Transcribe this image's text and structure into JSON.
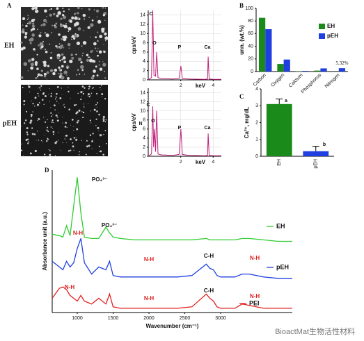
{
  "panel_labels": [
    "A",
    "B",
    "C",
    "D"
  ],
  "row_labels": [
    "EH",
    "pEH"
  ],
  "watermark": "BioactMat生物活性材料",
  "chart_data": [
    {
      "type": "line",
      "ylabel": "cps/eV",
      "xlabel": "keV",
      "x": [
        0,
        0.2,
        0.28,
        0.35,
        0.45,
        0.52,
        0.6,
        0.8,
        1.5,
        1.9,
        2.01,
        2.1,
        2.5,
        3.5,
        3.65,
        3.69,
        3.75,
        4.0,
        4.5
      ],
      "series": [
        {
          "color": "#c0207a",
          "values": [
            0,
            0.5,
            15,
            1,
            0.8,
            6,
            0.5,
            0.3,
            0.2,
            0.3,
            3,
            0.3,
            0.2,
            0.1,
            0.2,
            5,
            0.2,
            0.1,
            0.1
          ]
        }
      ],
      "annotations": [
        "C",
        "O",
        "P",
        "Ca"
      ],
      "xlim": [
        0,
        4.5
      ],
      "xticks": [
        2,
        4
      ],
      "ylim": [
        0,
        15
      ],
      "yticks": [
        0,
        2,
        4,
        6,
        8,
        10,
        12,
        14
      ],
      "grid": true
    },
    {
      "type": "line",
      "ylabel": "cps/eV",
      "xlabel": "keV",
      "x": [
        0,
        0.2,
        0.28,
        0.33,
        0.39,
        0.45,
        0.52,
        0.6,
        0.8,
        1.5,
        1.9,
        2.01,
        2.1,
        2.5,
        3.5,
        3.65,
        3.69,
        3.75,
        4.0,
        4.5
      ],
      "series": [
        {
          "color": "#c0207a",
          "values": [
            0,
            0.5,
            11,
            2,
            6,
            1,
            10,
            0.5,
            0.3,
            0.2,
            0.4,
            6,
            0.4,
            0.2,
            0.1,
            0.2,
            5,
            0.2,
            0.1,
            0.1
          ]
        }
      ],
      "annotations": [
        "C",
        "N",
        "O",
        "P",
        "Ca"
      ],
      "xlim": [
        0,
        4.5
      ],
      "xticks": [
        2,
        4
      ],
      "ylim": [
        0,
        15
      ],
      "yticks": [
        0,
        2,
        4,
        6,
        8,
        10,
        12,
        14
      ],
      "grid": true
    },
    {
      "type": "bar",
      "ylabel": "unn. (wt.%)",
      "categories": [
        "Carbon",
        "Oxygen",
        "Calcium",
        "Phosphorus",
        "Nitrogen"
      ],
      "series": [
        {
          "name": "EH",
          "color": "#1a8a1a",
          "values": [
            85,
            12,
            0.5,
            1.5,
            0
          ]
        },
        {
          "name": "pEH",
          "color": "#1f3fe0",
          "values": [
            67,
            19,
            1,
            5,
            5.32
          ],
          "value_labels": [
            null,
            null,
            null,
            null,
            "5.32%"
          ]
        }
      ],
      "ylim": [
        0,
        100
      ],
      "yticks": [
        0,
        20,
        40,
        60,
        80,
        100
      ],
      "grid": false
    },
    {
      "type": "bar",
      "ylabel": "Ca²⁺, mg/dL",
      "categories": [
        "EH",
        "pEH"
      ],
      "series": [
        {
          "colors": [
            "#1a8a1a",
            "#1f3fe0"
          ],
          "values": [
            3.1,
            0.3
          ],
          "errors": [
            0.3,
            0.3
          ]
        }
      ],
      "annotations": [
        "a",
        "b"
      ],
      "ylim": [
        0,
        4
      ],
      "yticks": [
        0,
        1,
        2,
        3,
        4
      ],
      "grid": false
    },
    {
      "type": "line",
      "ylabel": "Absorbance unit (a.u.)",
      "xlabel": "Wavenumber (cm⁻¹)",
      "x": [
        650,
        750,
        800,
        850,
        900,
        950,
        1000,
        1050,
        1100,
        1200,
        1300,
        1400,
        1450,
        1500,
        1600,
        1800,
        2000,
        2200,
        2400,
        2600,
        2800,
        2850,
        2900,
        2950,
        3000,
        3200,
        3300,
        3400,
        3600,
        3800,
        4000
      ],
      "series": [
        {
          "name": "EH",
          "color": "#2ecc2e",
          "values": [
            5.5,
            5.4,
            5.3,
            6.1,
            5.4,
            7.5,
            9.5,
            7,
            5.3,
            5.2,
            5.2,
            6.0,
            5.6,
            5.3,
            5.2,
            5.1,
            5.1,
            5.1,
            5.1,
            5.1,
            5.2,
            5.1,
            5.1,
            5.1,
            5.1,
            5.1,
            5.2,
            5.2,
            5.1,
            5.0,
            5.0
          ]
        },
        {
          "name": "pEH",
          "color": "#1f3fe0",
          "values": [
            3.6,
            3.2,
            3.0,
            3.6,
            3.2,
            3.5,
            4.5,
            5.2,
            3.5,
            2.7,
            3.2,
            3.0,
            3.6,
            2.6,
            2.5,
            2.5,
            2.5,
            2.5,
            2.5,
            2.6,
            3.4,
            3.1,
            3.0,
            2.6,
            2.5,
            2.5,
            2.7,
            2.7,
            2.5,
            2.4,
            2.4
          ]
        },
        {
          "name": "PEI",
          "color": "#e02020",
          "values": [
            1.0,
            1.7,
            1.8,
            1.6,
            1.2,
            1.0,
            0.8,
            1.2,
            0.8,
            0.6,
            1.0,
            0.6,
            1.3,
            0.4,
            0.3,
            0.3,
            0.3,
            0.3,
            0.3,
            0.4,
            1.3,
            1.0,
            0.8,
            0.4,
            0.3,
            0.3,
            0.6,
            0.5,
            0.3,
            0.3,
            0.3
          ]
        }
      ],
      "annotations": [
        "PO₄³⁻",
        "PO₄³⁻",
        "N-H",
        "N-H",
        "C-H",
        "N-H",
        "N-H",
        "N-H",
        "C-H",
        "N-H"
      ],
      "xlim": [
        650,
        4000
      ],
      "xticks": [
        1000,
        1500,
        2000,
        2500,
        3000
      ],
      "ylim": [
        0,
        10
      ],
      "grid": false
    }
  ]
}
